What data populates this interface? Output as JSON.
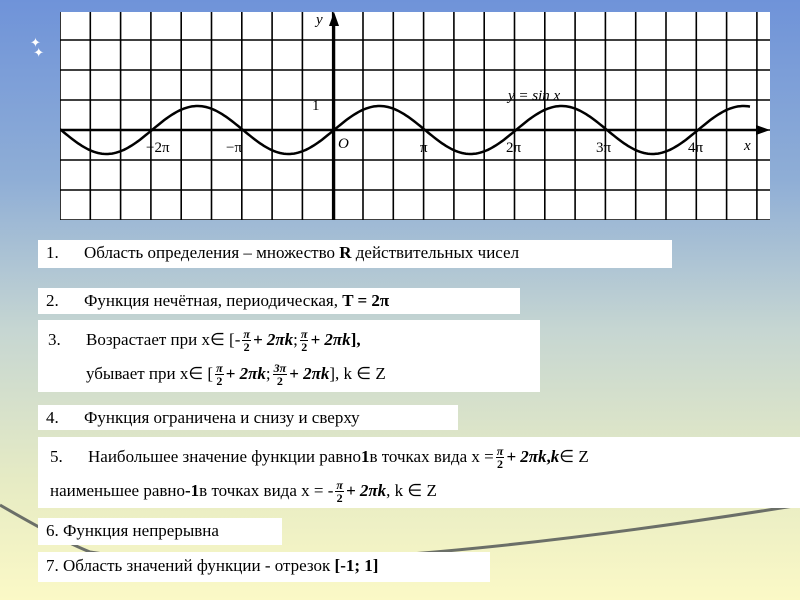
{
  "graph": {
    "y_label": "y",
    "x_label": "x",
    "origin": "O",
    "one": "1",
    "curve_label": "y = sin x",
    "ticks": [
      "−2π",
      "−π",
      "π",
      "2π",
      "3π",
      "4π"
    ]
  },
  "items": [
    {
      "num": "1.",
      "parts": [
        "Область определения – множество ",
        "R",
        " действительных чисел"
      ]
    },
    {
      "num": "2.",
      "parts": [
        "Функция нечётная, периодическая, ",
        "T = 2π"
      ]
    },
    {
      "num": "3.",
      "l1": {
        "a": "Возрастает при x∈ [-",
        "f1n": "π",
        "f1d": "2",
        "b": "+ 2πk",
        "c": "; ",
        "f2n": "π",
        "f2d": "2",
        "d": "+ 2πk",
        "e": " ],"
      },
      "l2": {
        "a": "убывает при x∈ [",
        "f1n": "π",
        "f1d": "2",
        "b": "+ 2πk",
        "c": "; ",
        "f2n": "3π",
        "f2d": "2",
        "d": "+ 2πk",
        "e": " ], k ∈ Z"
      }
    },
    {
      "num": "4.",
      "text": "Функция ограничена и снизу и сверху"
    },
    {
      "num": "5.",
      "l1": {
        "a": "Наибольшее значение функции  равно ",
        "one": "1",
        "b": " в точках вида x =",
        "fn": "π",
        "fd": "2",
        "c": "+ 2πk",
        "d": " , ",
        "k": "k",
        "e": "  ∈ Z"
      },
      "l2": {
        "a": "наименьшее равно ",
        "m1": "-1",
        "b": " в точках вида x = -",
        "fn": "π",
        "fd": "2",
        "c": "+ 2πk",
        "d": " , k ∈ Z"
      }
    },
    {
      "text": "6. Функция непрерывна"
    },
    {
      "text": "7. Область значений функции  - отрезок ",
      "bold": "[-1; 1]"
    }
  ],
  "colors": {
    "bg_top": "#6f93d9",
    "bg_bottom": "#fbf9c6",
    "box": "#ffffff"
  }
}
